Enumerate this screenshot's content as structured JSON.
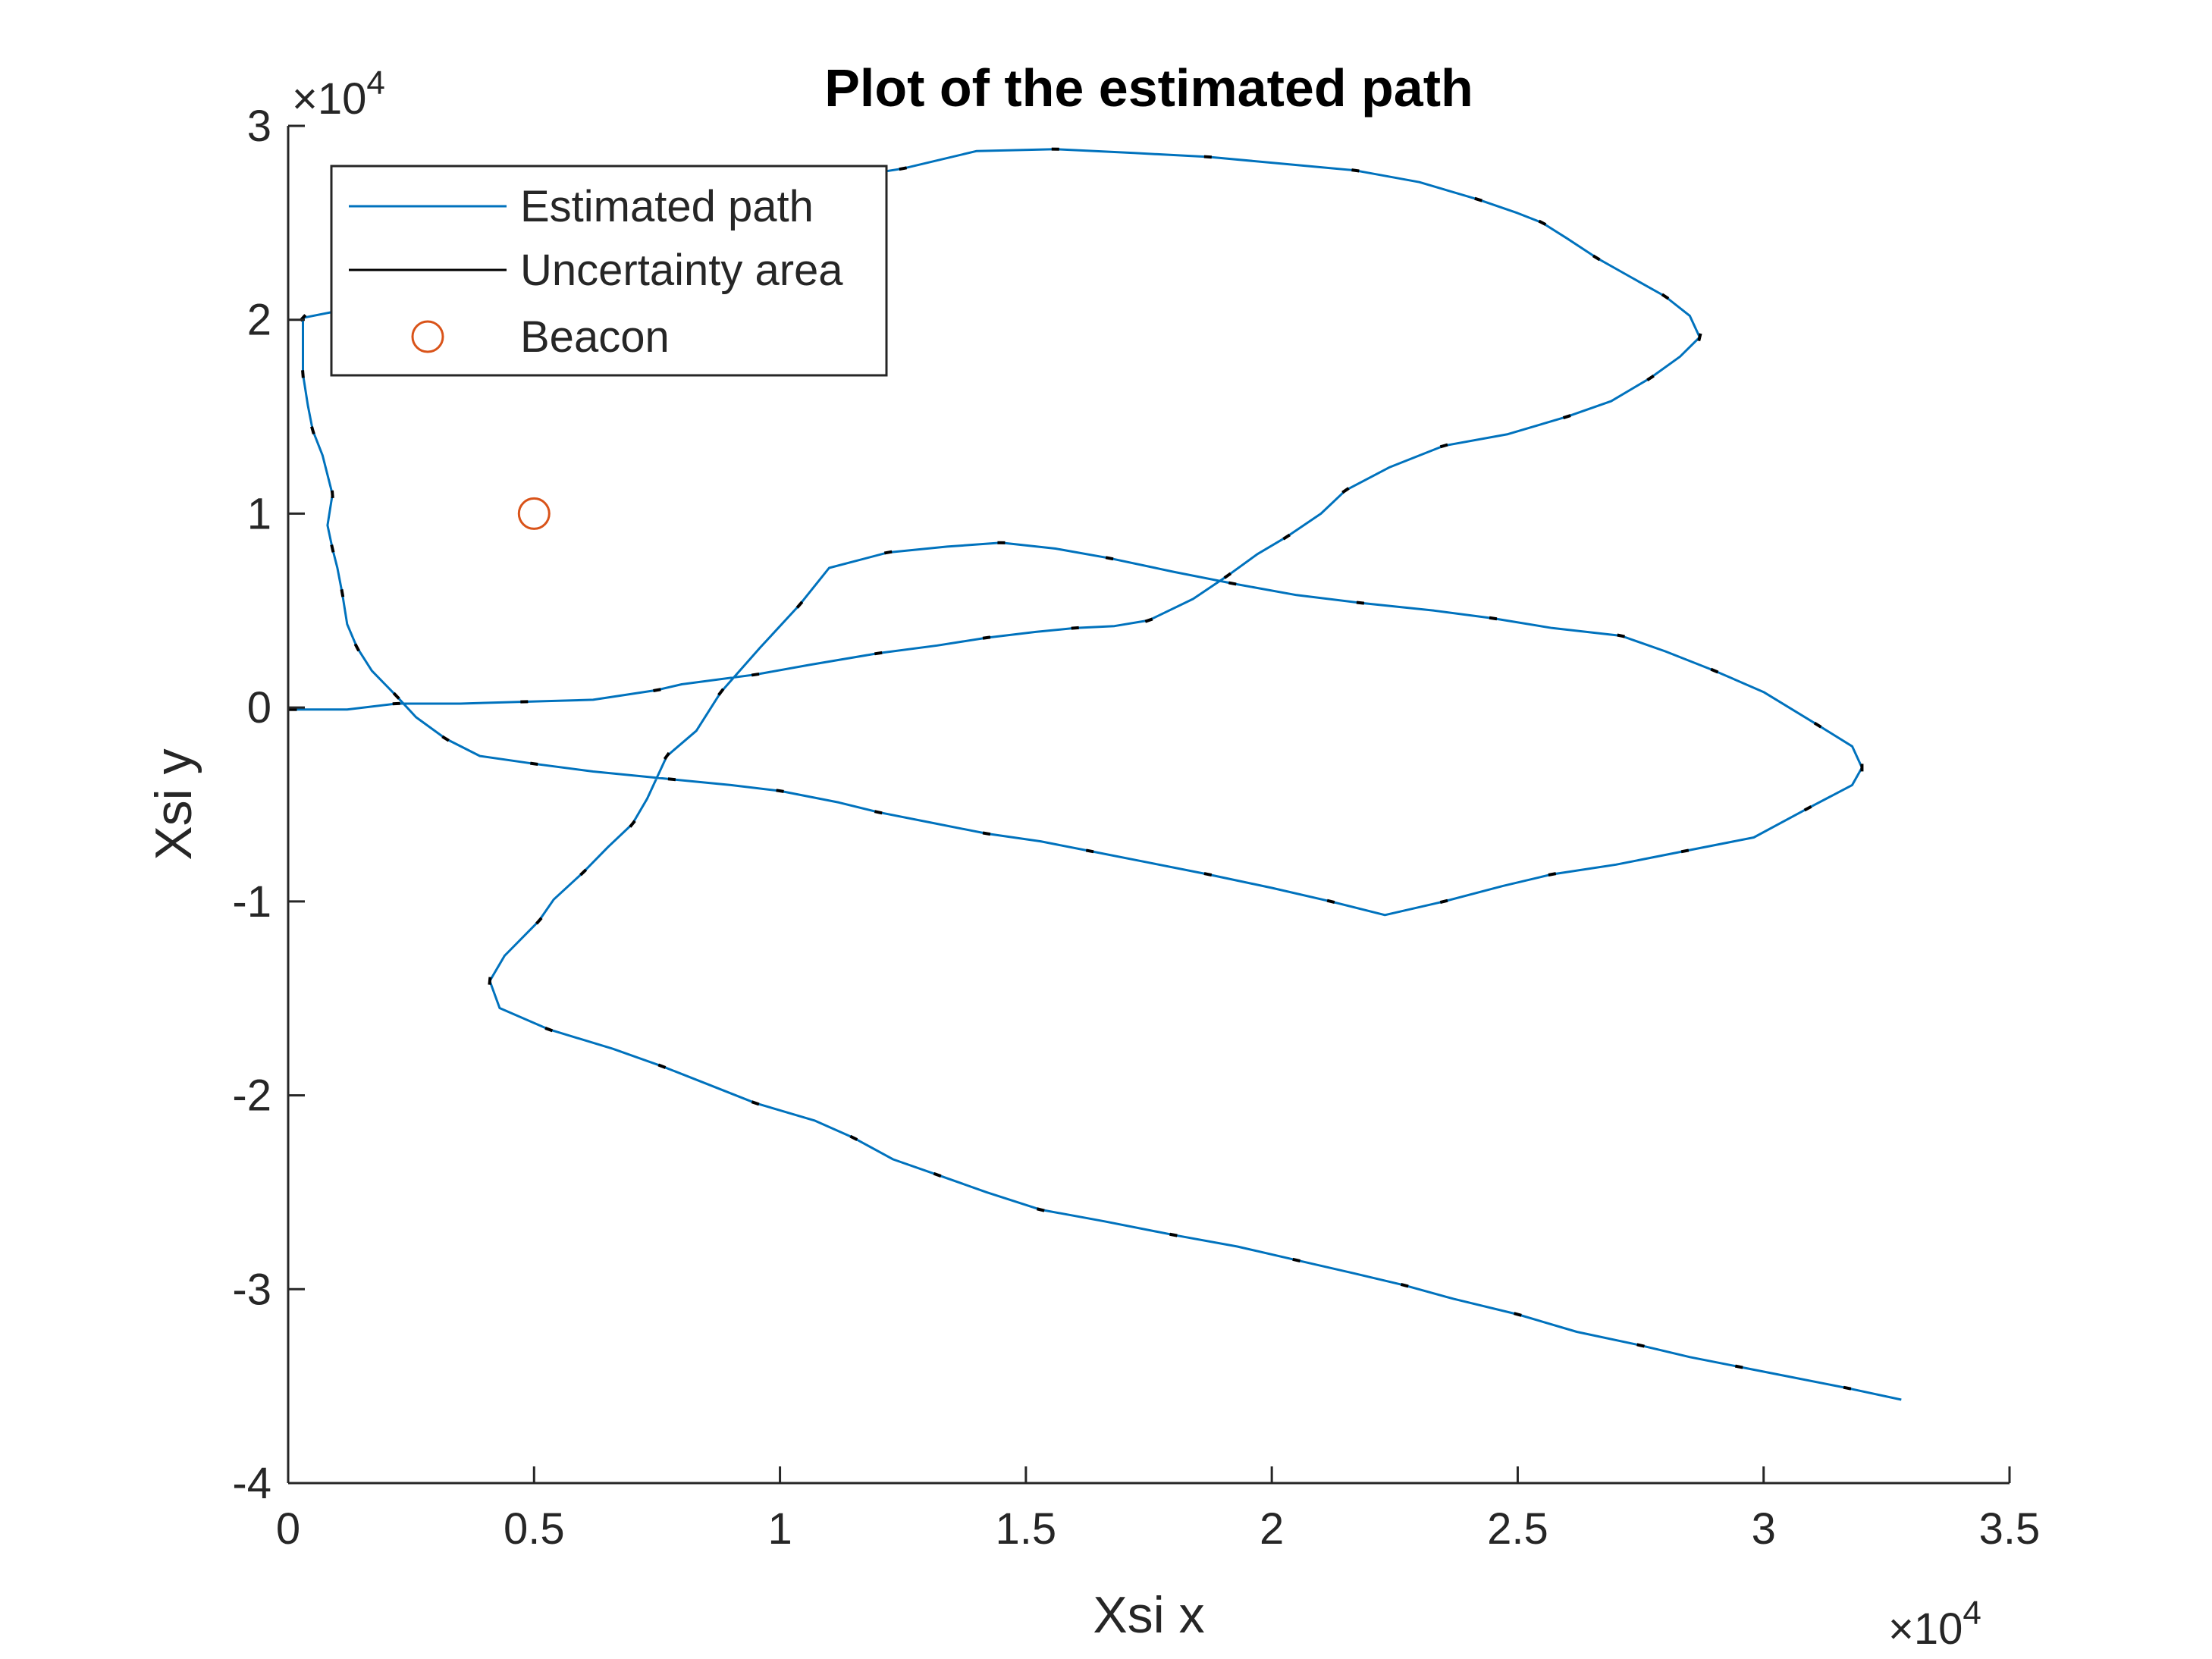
{
  "chart_data": {
    "type": "line",
    "title": "Plot of the estimated path",
    "xlabel": "Xsi x",
    "ylabel": "Xsi y",
    "xlim": [
      0,
      3.5
    ],
    "ylim": [
      -4,
      3
    ],
    "x_exponent": "×10",
    "x_exponent_power": "4",
    "y_exponent": "×10",
    "y_exponent_power": "4",
    "x_ticks": [
      "0",
      "0.5",
      "1",
      "1.5",
      "2",
      "2.5",
      "3",
      "3.5"
    ],
    "y_ticks": [
      "3",
      "2",
      "1",
      "0",
      "-1",
      "-2",
      "-3",
      "-4"
    ],
    "grid": false,
    "legend_position": "top-left",
    "colors": {
      "path": "#0072bd",
      "uncertainty": "#000000",
      "beacon": "#d95319",
      "axes": "#262626"
    },
    "legend": {
      "entries": [
        "Estimated path",
        "Uncertainty area",
        "Beacon"
      ]
    },
    "series": [
      {
        "name": "Estimated path",
        "style": "line",
        "points": [
          [
            3.28,
            -3.57
          ],
          [
            3.17,
            -3.51
          ],
          [
            3.05,
            -3.45
          ],
          [
            2.95,
            -3.4
          ],
          [
            2.85,
            -3.35
          ],
          [
            2.75,
            -3.29
          ],
          [
            2.62,
            -3.22
          ],
          [
            2.5,
            -3.13
          ],
          [
            2.37,
            -3.05
          ],
          [
            2.27,
            -2.98
          ],
          [
            2.17,
            -2.92
          ],
          [
            2.05,
            -2.85
          ],
          [
            1.93,
            -2.78
          ],
          [
            1.8,
            -2.72
          ],
          [
            1.66,
            -2.65
          ],
          [
            1.53,
            -2.59
          ],
          [
            1.42,
            -2.5
          ],
          [
            1.32,
            -2.41
          ],
          [
            1.23,
            -2.33
          ],
          [
            1.15,
            -2.22
          ],
          [
            1.07,
            -2.13
          ],
          [
            0.95,
            -2.04
          ],
          [
            0.85,
            -1.94
          ],
          [
            0.76,
            -1.85
          ],
          [
            0.66,
            -1.76
          ],
          [
            0.53,
            -1.66
          ],
          [
            0.43,
            -1.55
          ],
          [
            0.41,
            -1.41
          ],
          [
            0.44,
            -1.28
          ],
          [
            0.51,
            -1.1
          ],
          [
            0.54,
            -0.99
          ],
          [
            0.6,
            -0.85
          ],
          [
            0.65,
            -0.72
          ],
          [
            0.7,
            -0.6
          ],
          [
            0.73,
            -0.47
          ],
          [
            0.77,
            -0.25
          ],
          [
            0.83,
            -0.12
          ],
          [
            0.88,
            0.08
          ],
          [
            0.96,
            0.31
          ],
          [
            1.04,
            0.53
          ],
          [
            1.1,
            0.72
          ],
          [
            1.22,
            0.8
          ],
          [
            1.34,
            0.83
          ],
          [
            1.45,
            0.85
          ],
          [
            1.56,
            0.82
          ],
          [
            1.67,
            0.77
          ],
          [
            1.8,
            0.7
          ],
          [
            1.92,
            0.64
          ],
          [
            2.05,
            0.58
          ],
          [
            2.18,
            0.54
          ],
          [
            2.33,
            0.5
          ],
          [
            2.45,
            0.46
          ],
          [
            2.57,
            0.41
          ],
          [
            2.71,
            0.37
          ],
          [
            2.8,
            0.29
          ],
          [
            2.9,
            0.19
          ],
          [
            3.0,
            0.08
          ],
          [
            3.11,
            -0.09
          ],
          [
            3.18,
            -0.2
          ],
          [
            3.2,
            -0.31
          ],
          [
            3.18,
            -0.4
          ],
          [
            3.09,
            -0.52
          ],
          [
            2.98,
            -0.67
          ],
          [
            2.84,
            -0.74
          ],
          [
            2.7,
            -0.81
          ],
          [
            2.57,
            -0.86
          ],
          [
            2.47,
            -0.92
          ],
          [
            2.35,
            -1.0
          ],
          [
            2.23,
            -1.07
          ],
          [
            2.12,
            -1.0
          ],
          [
            2.0,
            -0.93
          ],
          [
            1.87,
            -0.86
          ],
          [
            1.75,
            -0.8
          ],
          [
            1.63,
            -0.74
          ],
          [
            1.53,
            -0.69
          ],
          [
            1.42,
            -0.65
          ],
          [
            1.3,
            -0.59
          ],
          [
            1.2,
            -0.54
          ],
          [
            1.12,
            -0.49
          ],
          [
            1.0,
            -0.43
          ],
          [
            0.9,
            -0.4
          ],
          [
            0.78,
            -0.37
          ],
          [
            0.62,
            -0.33
          ],
          [
            0.5,
            -0.29
          ],
          [
            0.39,
            -0.25
          ],
          [
            0.32,
            -0.16
          ],
          [
            0.26,
            -0.05
          ],
          [
            0.22,
            0.06
          ],
          [
            0.17,
            0.19
          ],
          [
            0.14,
            0.31
          ],
          [
            0.12,
            0.43
          ],
          [
            0.11,
            0.59
          ],
          [
            0.1,
            0.72
          ],
          [
            0.09,
            0.82
          ],
          [
            0.08,
            0.94
          ],
          [
            0.09,
            1.1
          ],
          [
            0.07,
            1.3
          ],
          [
            0.05,
            1.43
          ],
          [
            0.04,
            1.56
          ],
          [
            0.03,
            1.72
          ],
          [
            0.03,
            1.87
          ],
          [
            0.03,
            2.01
          ],
          [
            0.09,
            2.04
          ],
          [
            0.18,
            2.09
          ],
          [
            0.35,
            2.21
          ],
          [
            0.5,
            2.35
          ],
          [
            0.7,
            2.49
          ],
          [
            0.9,
            2.62
          ],
          [
            1.1,
            2.72
          ],
          [
            1.25,
            2.78
          ],
          [
            1.4,
            2.87
          ],
          [
            1.56,
            2.88
          ],
          [
            1.72,
            2.86
          ],
          [
            1.87,
            2.84
          ],
          [
            2.0,
            2.81
          ],
          [
            2.17,
            2.77
          ],
          [
            2.3,
            2.71
          ],
          [
            2.42,
            2.62
          ],
          [
            2.5,
            2.55
          ],
          [
            2.55,
            2.5
          ],
          [
            2.6,
            2.42
          ],
          [
            2.66,
            2.32
          ],
          [
            2.73,
            2.22
          ],
          [
            2.8,
            2.12
          ],
          [
            2.85,
            2.02
          ],
          [
            2.87,
            1.91
          ],
          [
            2.83,
            1.81
          ],
          [
            2.77,
            1.7
          ],
          [
            2.69,
            1.58
          ],
          [
            2.6,
            1.5
          ],
          [
            2.48,
            1.41
          ],
          [
            2.35,
            1.35
          ],
          [
            2.24,
            1.24
          ],
          [
            2.15,
            1.12
          ],
          [
            2.1,
            1.0
          ],
          [
            2.03,
            0.88
          ],
          [
            1.97,
            0.79
          ],
          [
            1.91,
            0.68
          ],
          [
            1.84,
            0.56
          ],
          [
            1.75,
            0.45
          ],
          [
            1.68,
            0.42
          ],
          [
            1.6,
            0.41
          ],
          [
            1.52,
            0.39
          ],
          [
            1.42,
            0.36
          ],
          [
            1.32,
            0.32
          ],
          [
            1.2,
            0.28
          ],
          [
            1.06,
            0.22
          ],
          [
            0.95,
            0.17
          ],
          [
            0.8,
            0.12
          ],
          [
            0.75,
            0.09
          ],
          [
            0.62,
            0.04
          ],
          [
            0.48,
            0.03
          ],
          [
            0.35,
            0.02
          ],
          [
            0.22,
            0.02
          ],
          [
            0.12,
            -0.01
          ],
          [
            0.01,
            -0.01
          ],
          [
            0.0,
            -0.01
          ]
        ]
      },
      {
        "name": "Beacon",
        "style": "marker",
        "points": [
          [
            0.5,
            1.0
          ]
        ]
      }
    ]
  }
}
